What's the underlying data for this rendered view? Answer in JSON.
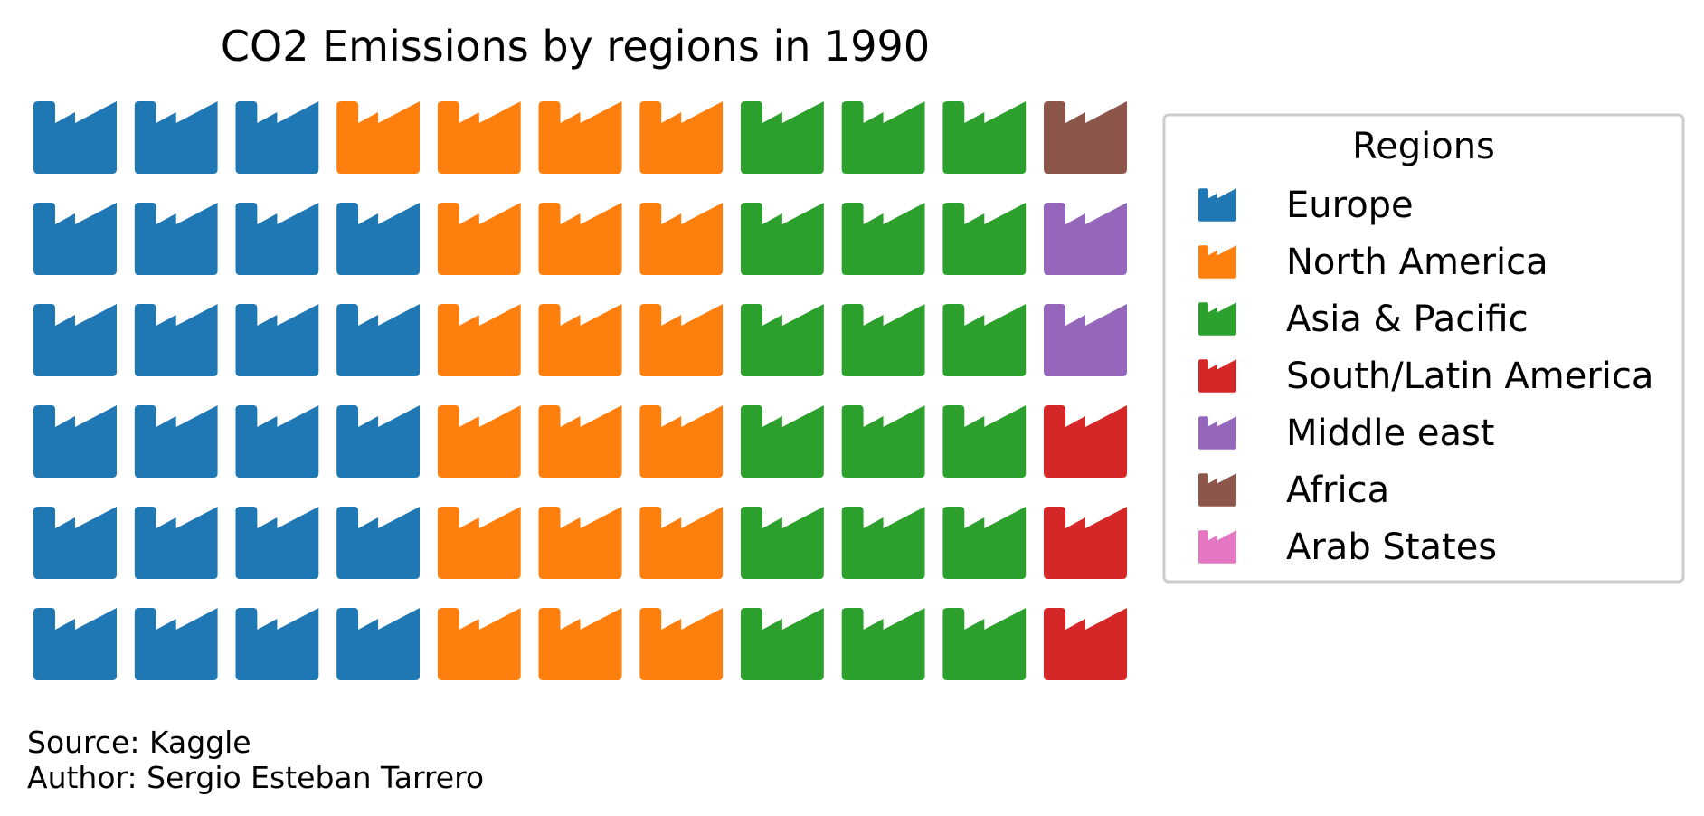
{
  "chart_data": {
    "type": "waffle",
    "title": "CO2 Emissions by regions in 1990",
    "rows": 6,
    "columns": 11,
    "icon": "factory-icon",
    "series": [
      {
        "name": "Europe",
        "count": 23,
        "color": "#1f77b4"
      },
      {
        "name": "North America",
        "count": 19,
        "color": "#ff7f0e"
      },
      {
        "name": "Asia & Pacific",
        "count": 18,
        "color": "#2ca02c"
      },
      {
        "name": "South/Latin America",
        "count": 3,
        "color": "#d62728"
      },
      {
        "name": "Middle east",
        "count": 2,
        "color": "#9467bd"
      },
      {
        "name": "Africa",
        "count": 1,
        "color": "#8c564b"
      },
      {
        "name": "Arab States",
        "count": 0,
        "color": "#e377c2"
      }
    ],
    "legend": {
      "title": "Regions",
      "position": "right"
    }
  },
  "footer": {
    "source": "Source: Kaggle",
    "author": "Author: Sergio Esteban Tarrero"
  }
}
